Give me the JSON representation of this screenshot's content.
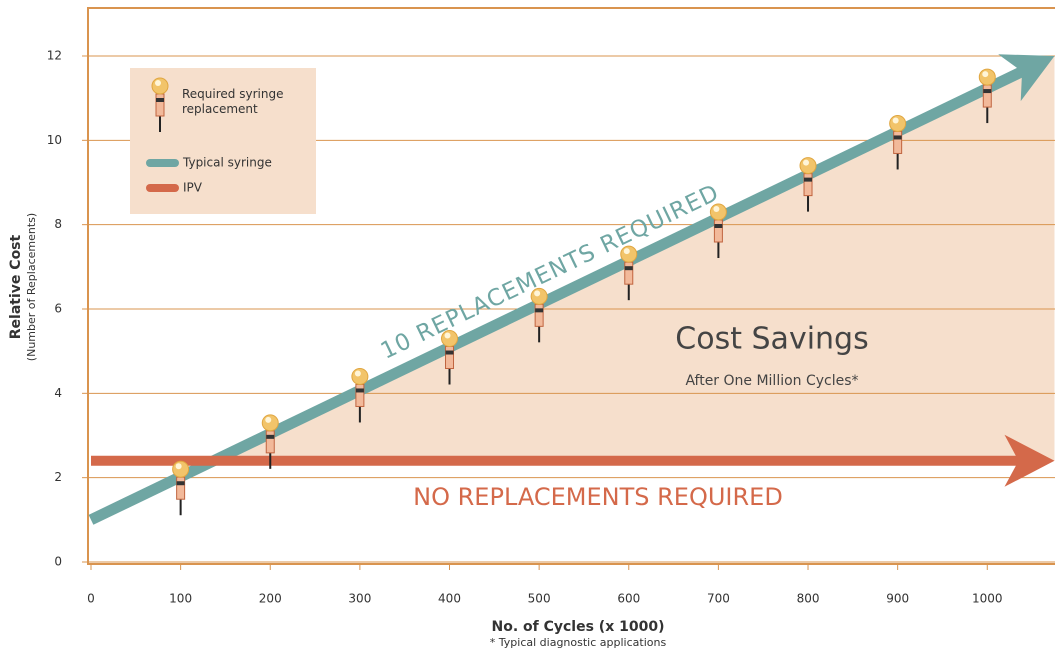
{
  "chart_data": {
    "type": "line",
    "y_label": "Relative Cost",
    "y_sublabel": "(Number of Replacements)",
    "x_label": "No. of Cycles (x 1000)",
    "footnote": "* Typical diagnostic applications",
    "annotations": [
      "10 REPLACEMENTS REQUIRED",
      "NO REPLACEMENTS REQUIRED",
      "Cost Savings",
      "After One Million Cycles*"
    ],
    "xlim": [
      0,
      1075
    ],
    "ylim": [
      0,
      13.1
    ],
    "xticks": [
      0,
      100,
      200,
      300,
      400,
      500,
      600,
      700,
      800,
      900,
      1000
    ],
    "yticks": [
      0,
      2,
      4,
      6,
      8,
      10,
      12
    ],
    "grid": true,
    "legend": "top-left",
    "axis_color": "#d9944f",
    "shade_color": "#f6dfcc",
    "series": [
      {
        "name": "Required syringe replacement",
        "type": "scatter",
        "color": "#f2c46a",
        "x": [
          100,
          200,
          300,
          400,
          500,
          600,
          700,
          800,
          900,
          1000
        ],
        "values": [
          2.2,
          3.3,
          4.4,
          5.3,
          6.3,
          7.3,
          8.3,
          9.4,
          10.4,
          11.5
        ]
      },
      {
        "name": "Typical syringe",
        "color": "#6fa6a3",
        "x": [
          0,
          1075
        ],
        "values": [
          1,
          12
        ]
      },
      {
        "name": "IPV",
        "color": "#d4694a",
        "x": [
          0,
          1075
        ],
        "values": [
          2.4,
          2.4
        ]
      }
    ]
  }
}
